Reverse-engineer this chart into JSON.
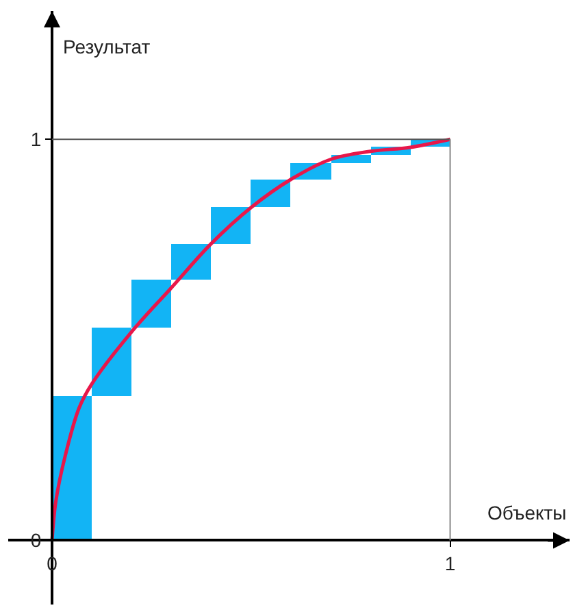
{
  "chart_data": {
    "type": "bar",
    "xlabel": "Объекты",
    "ylabel": "Результат",
    "x": [
      0.05,
      0.15,
      0.25,
      0.35,
      0.45,
      0.55,
      0.65,
      0.75,
      0.85,
      0.95
    ],
    "series": [
      {
        "color": "#12b4f5",
        "values": [
          0.36,
          0.17,
          0.12,
          0.09,
          0.09,
          0.07,
          0.04,
          0.02,
          0.02,
          0.02
        ],
        "base": [
          0,
          0.36,
          0.53,
          0.65,
          0.74,
          0.83,
          0.9,
          0.94,
          0.96,
          0.98
        ]
      },
      {
        "type": "line",
        "color": "#e8174a",
        "x": [
          0,
          0.01,
          0.033,
          0.068,
          0.1,
          0.2,
          0.3,
          0.4,
          0.5,
          0.6,
          0.7,
          0.8,
          0.9,
          1
        ],
        "values": [
          0,
          0.1,
          0.21,
          0.33,
          0.39,
          0.52,
          0.63,
          0.74,
          0.83,
          0.9,
          0.95,
          0.97,
          0.98,
          1
        ]
      }
    ],
    "ref_lines": [
      {
        "axis": "y",
        "value": 1,
        "color": "#555555"
      },
      {
        "axis": "x",
        "value": 1,
        "color": "#888888"
      }
    ],
    "xlim": [
      -0.11,
      1.3
    ],
    "ylim": [
      -0.16,
      1.32
    ],
    "xticks": [
      0,
      1
    ],
    "yticks": [
      0,
      1
    ]
  }
}
